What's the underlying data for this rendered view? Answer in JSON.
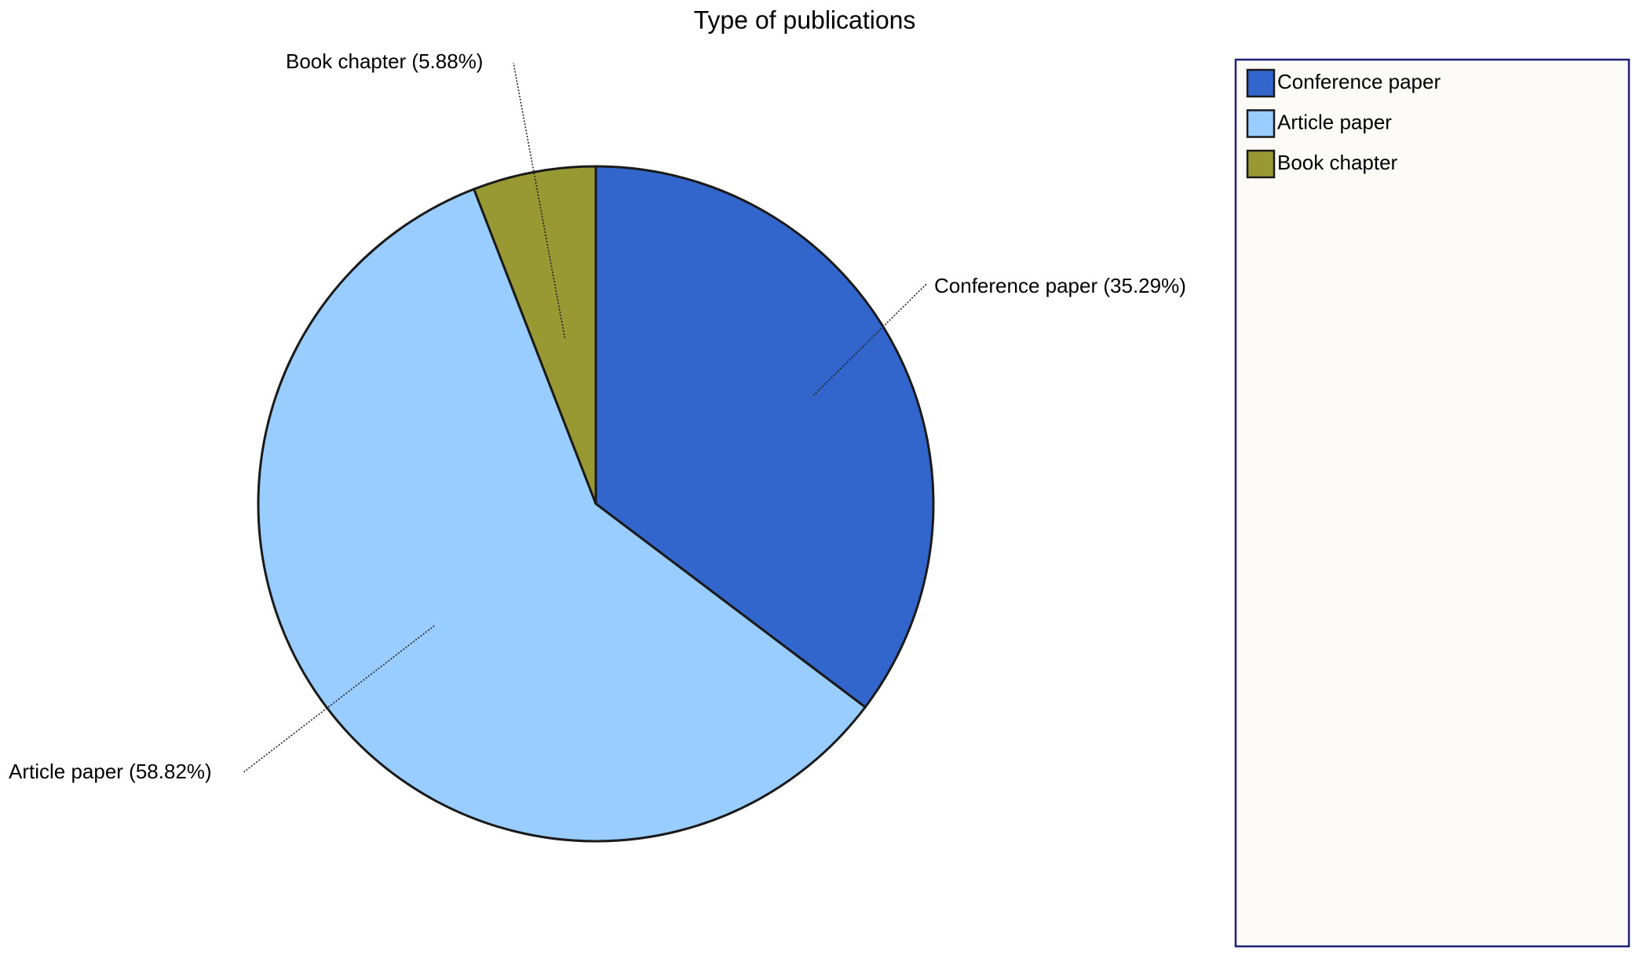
{
  "chart_data": {
    "type": "pie",
    "title": "Type of publications",
    "categories": [
      "Conference paper",
      "Article paper",
      "Book chapter"
    ],
    "values": [
      35.29,
      58.82,
      5.88
    ],
    "value_labels": [
      "Conference paper (35.29%)",
      "Article paper (58.82%)",
      "Book chapter (5.88%)"
    ],
    "colors": [
      "#3366cc",
      "#99ccff",
      "#999933"
    ]
  }
}
